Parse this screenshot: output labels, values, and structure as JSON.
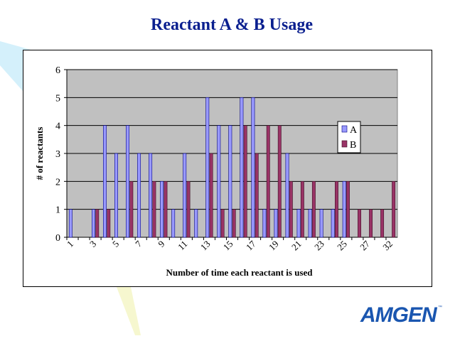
{
  "slide": {
    "title": "Reactant A & B Usage",
    "logo_text": "AMGEN",
    "logo_tm": "™"
  },
  "colors": {
    "title": "#0a1f8f",
    "series_a": "#9999ff",
    "series_b": "#993366",
    "plot_bg": "#c0c0c0",
    "logo": "#1a56b0"
  },
  "chart_data": {
    "type": "bar",
    "xlabel": "Number of time each reactant is used",
    "ylabel": "# of reactants",
    "ylim": [
      0,
      6
    ],
    "yticks": [
      0,
      1,
      2,
      3,
      4,
      5,
      6
    ],
    "grid": true,
    "legend_position": "right",
    "categories": [
      "1",
      "2",
      "3",
      "4",
      "5",
      "6",
      "7",
      "8",
      "9",
      "10",
      "11",
      "12",
      "13",
      "14",
      "15",
      "16",
      "17",
      "18",
      "19",
      "20",
      "21",
      "22",
      "23",
      "24",
      "25",
      "26",
      "27",
      "29",
      "32"
    ],
    "x_tick_labels_shown": [
      "1",
      "3",
      "5",
      "7",
      "9",
      "11",
      "13",
      "15",
      "17",
      "19",
      "21",
      "23",
      "25",
      "27",
      "32"
    ],
    "series": [
      {
        "name": "A",
        "values": [
          1,
          0,
          1,
          4,
          3,
          4,
          3,
          3,
          2,
          1,
          3,
          1,
          5,
          4,
          4,
          5,
          5,
          1,
          1,
          3,
          1,
          1,
          1,
          1,
          2,
          0,
          0,
          0,
          0
        ]
      },
      {
        "name": "B",
        "values": [
          0,
          0,
          1,
          1,
          0,
          2,
          0,
          2,
          2,
          0,
          2,
          0,
          3,
          1,
          1,
          4,
          3,
          4,
          4,
          2,
          2,
          2,
          0,
          2,
          2,
          1,
          1,
          1,
          2
        ]
      }
    ]
  }
}
